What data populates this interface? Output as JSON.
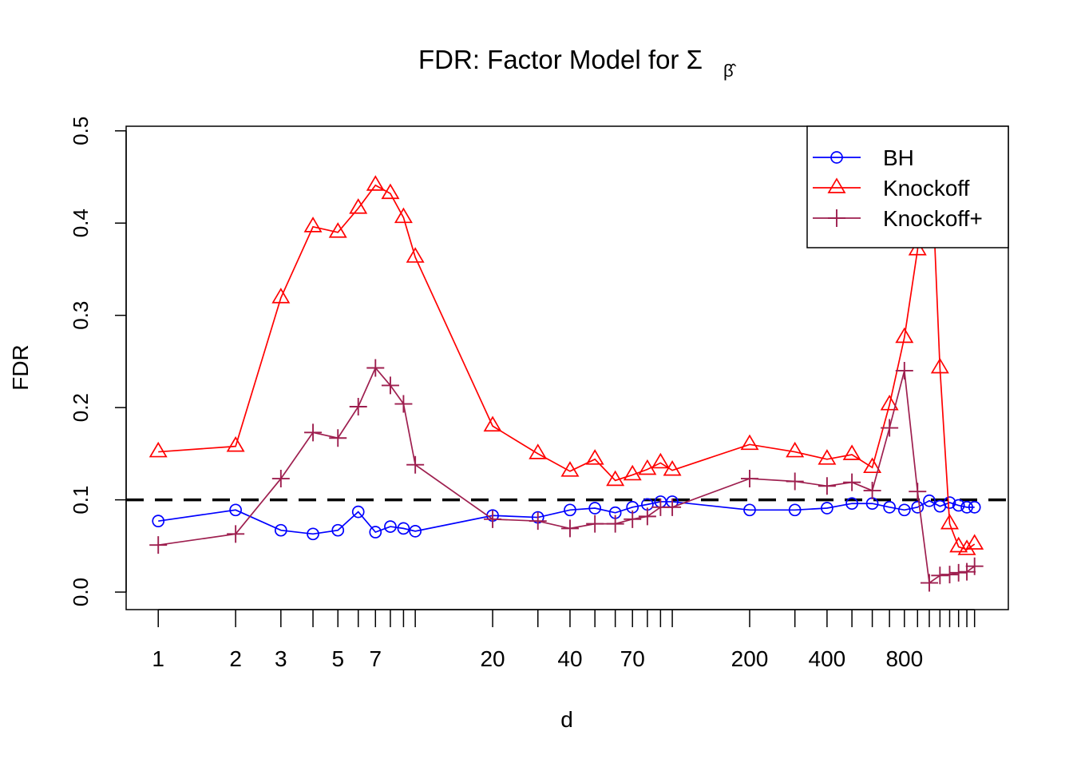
{
  "chart_data": {
    "type": "line",
    "title": "FDR: Factor Model for Σ",
    "title_subscript": "β̂",
    "xlabel": "d",
    "ylabel": "FDR",
    "x_scale": "log",
    "xlim": [
      0.75,
      2030
    ],
    "ylim": [
      -0.019,
      0.505
    ],
    "x": [
      1,
      2,
      3,
      4,
      5,
      6,
      7,
      8,
      9,
      10,
      20,
      30,
      40,
      50,
      60,
      70,
      80,
      90,
      100,
      200,
      300,
      400,
      500,
      600,
      700,
      800,
      900,
      1000,
      1100,
      1200,
      1300,
      1400,
      1500
    ],
    "x_tick_labels": [
      "1",
      "2",
      "3",
      "",
      "5",
      "",
      "7",
      "",
      "",
      "",
      "20",
      "",
      "40",
      "",
      "",
      "70",
      "",
      "",
      "",
      "200",
      "",
      "400",
      "",
      "",
      "",
      "800",
      "",
      "",
      "",
      "",
      "",
      "",
      ""
    ],
    "y_ticks": [
      0,
      0.1,
      0.2,
      0.3,
      0.4,
      0.5
    ],
    "y_tick_labels": [
      "0.0",
      "0.1",
      "0.2",
      "0.3",
      "0.4",
      "0.5"
    ],
    "reference_line": {
      "y": 0.1,
      "style": "dashed",
      "color": "#000000"
    },
    "legend": {
      "placement": "top-right"
    },
    "series": [
      {
        "name": "BH",
        "color": "#0000ff",
        "marker": "circle",
        "values": [
          0.077,
          0.089,
          0.067,
          0.063,
          0.067,
          0.087,
          0.065,
          0.071,
          0.069,
          0.066,
          0.083,
          0.081,
          0.089,
          0.091,
          0.086,
          0.092,
          0.095,
          0.098,
          0.098,
          0.089,
          0.089,
          0.091,
          0.096,
          0.096,
          0.092,
          0.089,
          0.092,
          0.099,
          0.093,
          0.097,
          0.094,
          0.092,
          0.092
        ]
      },
      {
        "name": "Knockoff",
        "color": "#ff0000",
        "marker": "triangle",
        "values": [
          0.152,
          0.158,
          0.319,
          0.396,
          0.39,
          0.416,
          0.441,
          0.432,
          0.406,
          0.363,
          0.18,
          0.15,
          0.131,
          0.144,
          0.121,
          0.127,
          0.133,
          0.14,
          0.132,
          0.16,
          0.152,
          0.144,
          0.149,
          0.135,
          0.203,
          0.276,
          0.371,
          0.52,
          0.243,
          0.074,
          0.049,
          0.046,
          0.052
        ]
      },
      {
        "name": "Knockoff+",
        "color": "#9e1f4f",
        "marker": "plus",
        "values": [
          0.051,
          0.063,
          0.123,
          0.173,
          0.167,
          0.201,
          0.243,
          0.224,
          0.204,
          0.138,
          0.079,
          0.077,
          0.069,
          0.074,
          0.074,
          0.079,
          0.082,
          0.092,
          0.092,
          0.123,
          0.12,
          0.115,
          0.119,
          0.11,
          0.178,
          0.24,
          0.109,
          0.01,
          0.018,
          0.019,
          0.021,
          0.022,
          0.028
        ]
      }
    ]
  }
}
